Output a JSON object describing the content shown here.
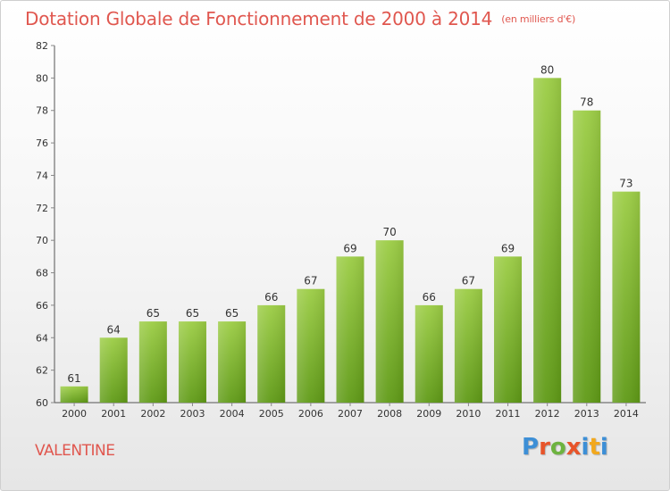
{
  "header": {
    "title": "Dotation Globale de Fonctionnement de 2000 à 2014",
    "subtitle": "(en milliers d'€)"
  },
  "footer": {
    "commune": "VALENTINE",
    "logo_text": "Proxiti",
    "logo_colors": [
      "#3d8fd6",
      "#e8542a",
      "#6db33f",
      "#e8542a",
      "#3d8fd6",
      "#f2a81d",
      "#3d8fd6"
    ]
  },
  "colors": {
    "title": "#e0574f",
    "bar_top": "#9ccd45",
    "bar_bottom": "#5f9a16",
    "axis": "#555555",
    "grid_tick": "#888888"
  },
  "chart_data": {
    "type": "bar",
    "categories": [
      "2000",
      "2001",
      "2002",
      "2003",
      "2004",
      "2005",
      "2006",
      "2007",
      "2008",
      "2009",
      "2010",
      "2011",
      "2012",
      "2013",
      "2014"
    ],
    "values": [
      61,
      64,
      65,
      65,
      65,
      66,
      67,
      69,
      70,
      66,
      67,
      69,
      80,
      78,
      73
    ],
    "ylim": [
      60,
      82
    ],
    "yticks": [
      60,
      62,
      64,
      66,
      68,
      70,
      72,
      74,
      76,
      78,
      80,
      82
    ],
    "grid": false,
    "title": "Dotation Globale de Fonctionnement de 2000 à 2014",
    "subtitle": "(en milliers d'€)"
  }
}
